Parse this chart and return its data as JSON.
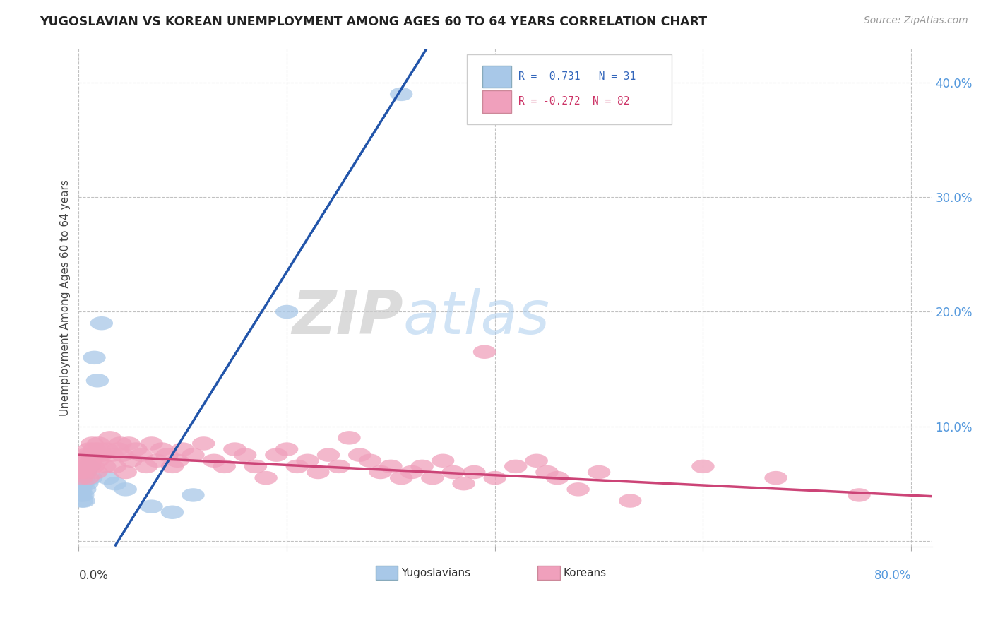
{
  "title": "YUGOSLAVIAN VS KOREAN UNEMPLOYMENT AMONG AGES 60 TO 64 YEARS CORRELATION CHART",
  "source": "Source: ZipAtlas.com",
  "ylabel": "Unemployment Among Ages 60 to 64 years",
  "watermark_zip": "ZIP",
  "watermark_atlas": "atlas",
  "legend_blue_r": "0.731",
  "legend_blue_n": "31",
  "legend_pink_r": "-0.272",
  "legend_pink_n": "82",
  "yugoslav_color": "#A8C8E8",
  "korean_color": "#F0A0BC",
  "yugoslav_line_color": "#2255AA",
  "korean_line_color": "#CC4477",
  "background_color": "#FFFFFF",
  "grid_color": "#BBBBBB",
  "yugoslav_scatter": [
    [
      0.0,
      0.055
    ],
    [
      0.001,
      0.06
    ],
    [
      0.001,
      0.05
    ],
    [
      0.001,
      0.045
    ],
    [
      0.002,
      0.06
    ],
    [
      0.002,
      0.055
    ],
    [
      0.002,
      0.045
    ],
    [
      0.002,
      0.04
    ],
    [
      0.003,
      0.055
    ],
    [
      0.003,
      0.05
    ],
    [
      0.003,
      0.035
    ],
    [
      0.004,
      0.05
    ],
    [
      0.004,
      0.04
    ],
    [
      0.005,
      0.055
    ],
    [
      0.005,
      0.035
    ],
    [
      0.006,
      0.045
    ],
    [
      0.007,
      0.06
    ],
    [
      0.008,
      0.05
    ],
    [
      0.01,
      0.065
    ],
    [
      0.012,
      0.055
    ],
    [
      0.015,
      0.16
    ],
    [
      0.018,
      0.14
    ],
    [
      0.022,
      0.19
    ],
    [
      0.028,
      0.055
    ],
    [
      0.035,
      0.05
    ],
    [
      0.045,
      0.045
    ],
    [
      0.07,
      0.03
    ],
    [
      0.09,
      0.025
    ],
    [
      0.11,
      0.04
    ],
    [
      0.2,
      0.2
    ],
    [
      0.31,
      0.39
    ]
  ],
  "korean_scatter": [
    [
      0.001,
      0.065
    ],
    [
      0.002,
      0.06
    ],
    [
      0.003,
      0.055
    ],
    [
      0.004,
      0.07
    ],
    [
      0.005,
      0.065
    ],
    [
      0.006,
      0.06
    ],
    [
      0.007,
      0.075
    ],
    [
      0.008,
      0.065
    ],
    [
      0.009,
      0.055
    ],
    [
      0.01,
      0.08
    ],
    [
      0.011,
      0.075
    ],
    [
      0.012,
      0.07
    ],
    [
      0.013,
      0.085
    ],
    [
      0.014,
      0.065
    ],
    [
      0.015,
      0.08
    ],
    [
      0.016,
      0.075
    ],
    [
      0.017,
      0.06
    ],
    [
      0.018,
      0.07
    ],
    [
      0.019,
      0.085
    ],
    [
      0.02,
      0.08
    ],
    [
      0.022,
      0.075
    ],
    [
      0.025,
      0.065
    ],
    [
      0.027,
      0.08
    ],
    [
      0.03,
      0.09
    ],
    [
      0.032,
      0.075
    ],
    [
      0.035,
      0.065
    ],
    [
      0.038,
      0.08
    ],
    [
      0.04,
      0.085
    ],
    [
      0.042,
      0.075
    ],
    [
      0.045,
      0.06
    ],
    [
      0.048,
      0.085
    ],
    [
      0.05,
      0.07
    ],
    [
      0.055,
      0.08
    ],
    [
      0.06,
      0.075
    ],
    [
      0.065,
      0.065
    ],
    [
      0.07,
      0.085
    ],
    [
      0.075,
      0.07
    ],
    [
      0.08,
      0.08
    ],
    [
      0.085,
      0.075
    ],
    [
      0.09,
      0.065
    ],
    [
      0.095,
      0.07
    ],
    [
      0.1,
      0.08
    ],
    [
      0.11,
      0.075
    ],
    [
      0.12,
      0.085
    ],
    [
      0.13,
      0.07
    ],
    [
      0.14,
      0.065
    ],
    [
      0.15,
      0.08
    ],
    [
      0.16,
      0.075
    ],
    [
      0.17,
      0.065
    ],
    [
      0.18,
      0.055
    ],
    [
      0.19,
      0.075
    ],
    [
      0.2,
      0.08
    ],
    [
      0.21,
      0.065
    ],
    [
      0.22,
      0.07
    ],
    [
      0.23,
      0.06
    ],
    [
      0.24,
      0.075
    ],
    [
      0.25,
      0.065
    ],
    [
      0.26,
      0.09
    ],
    [
      0.27,
      0.075
    ],
    [
      0.28,
      0.07
    ],
    [
      0.29,
      0.06
    ],
    [
      0.3,
      0.065
    ],
    [
      0.31,
      0.055
    ],
    [
      0.32,
      0.06
    ],
    [
      0.33,
      0.065
    ],
    [
      0.34,
      0.055
    ],
    [
      0.35,
      0.07
    ],
    [
      0.36,
      0.06
    ],
    [
      0.37,
      0.05
    ],
    [
      0.38,
      0.06
    ],
    [
      0.39,
      0.165
    ],
    [
      0.4,
      0.055
    ],
    [
      0.42,
      0.065
    ],
    [
      0.44,
      0.07
    ],
    [
      0.45,
      0.06
    ],
    [
      0.46,
      0.055
    ],
    [
      0.48,
      0.045
    ],
    [
      0.5,
      0.06
    ],
    [
      0.53,
      0.035
    ],
    [
      0.6,
      0.065
    ],
    [
      0.67,
      0.055
    ],
    [
      0.75,
      0.04
    ]
  ],
  "xlim": [
    0.0,
    0.82
  ],
  "ylim": [
    -0.005,
    0.43
  ],
  "yticks": [
    0.0,
    0.1,
    0.2,
    0.3,
    0.4
  ],
  "yticklabels": [
    "",
    "10.0%",
    "20.0%",
    "30.0%",
    "40.0%"
  ],
  "xtick_positions": [
    0.0,
    0.2,
    0.4,
    0.6,
    0.8
  ]
}
